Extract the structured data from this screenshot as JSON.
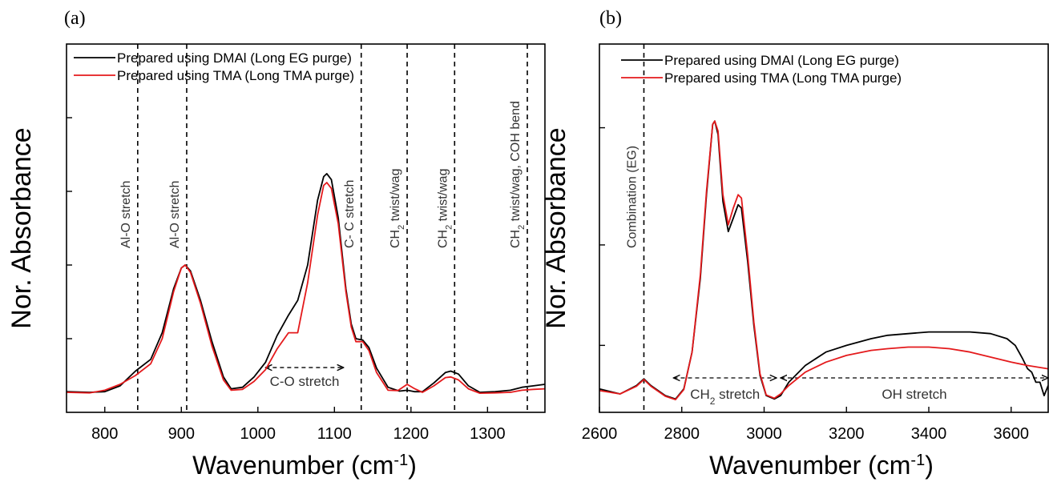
{
  "chart_data": [
    {
      "panel_label": "(a)",
      "type": "line",
      "xlabel": "Wavenumber (cm",
      "xlabel_sup": "-1",
      "xlabel_close": ")",
      "ylabel": "Nor. Absorbance",
      "xlim": [
        750,
        1375
      ],
      "ylim": [
        0,
        1.25
      ],
      "x_ticks": [
        800,
        900,
        1000,
        1100,
        1200,
        1300
      ],
      "x_tick_labels": [
        "800",
        "900",
        "1000",
        "1100",
        "1200",
        "1300"
      ],
      "y_ticks": [
        0.25,
        0.5,
        0.75,
        1.0
      ],
      "grid": false,
      "legend_position": "top-left",
      "series": [
        {
          "name": "Prepared using DMAl (Long EG purge)",
          "color": "#000000",
          "points": [
            [
              750,
              0.07
            ],
            [
              780,
              0.068
            ],
            [
              800,
              0.07
            ],
            [
              820,
              0.09
            ],
            [
              840,
              0.14
            ],
            [
              860,
              0.18
            ],
            [
              875,
              0.27
            ],
            [
              890,
              0.42
            ],
            [
              900,
              0.49
            ],
            [
              905,
              0.5
            ],
            [
              912,
              0.48
            ],
            [
              925,
              0.38
            ],
            [
              940,
              0.24
            ],
            [
              955,
              0.12
            ],
            [
              965,
              0.08
            ],
            [
              980,
              0.085
            ],
            [
              995,
              0.12
            ],
            [
              1010,
              0.17
            ],
            [
              1025,
              0.26
            ],
            [
              1040,
              0.33
            ],
            [
              1052,
              0.38
            ],
            [
              1065,
              0.5
            ],
            [
              1078,
              0.72
            ],
            [
              1086,
              0.8
            ],
            [
              1090,
              0.81
            ],
            [
              1096,
              0.79
            ],
            [
              1105,
              0.66
            ],
            [
              1115,
              0.42
            ],
            [
              1122,
              0.3
            ],
            [
              1128,
              0.25
            ],
            [
              1137,
              0.245
            ],
            [
              1145,
              0.22
            ],
            [
              1155,
              0.15
            ],
            [
              1170,
              0.085
            ],
            [
              1185,
              0.072
            ],
            [
              1195,
              0.075
            ],
            [
              1205,
              0.07
            ],
            [
              1215,
              0.07
            ],
            [
              1230,
              0.1
            ],
            [
              1245,
              0.135
            ],
            [
              1252,
              0.14
            ],
            [
              1262,
              0.13
            ],
            [
              1275,
              0.09
            ],
            [
              1290,
              0.068
            ],
            [
              1310,
              0.07
            ],
            [
              1330,
              0.075
            ],
            [
              1345,
              0.085
            ],
            [
              1360,
              0.09
            ],
            [
              1375,
              0.095
            ]
          ]
        },
        {
          "name": "Prepared using TMA (Long TMA purge)",
          "color": "#e41a1c",
          "points": [
            [
              750,
              0.068
            ],
            [
              780,
              0.066
            ],
            [
              800,
              0.075
            ],
            [
              820,
              0.095
            ],
            [
              840,
              0.125
            ],
            [
              860,
              0.165
            ],
            [
              875,
              0.25
            ],
            [
              890,
              0.41
            ],
            [
              900,
              0.49
            ],
            [
              905,
              0.5
            ],
            [
              912,
              0.475
            ],
            [
              925,
              0.37
            ],
            [
              940,
              0.225
            ],
            [
              955,
              0.11
            ],
            [
              965,
              0.075
            ],
            [
              980,
              0.078
            ],
            [
              995,
              0.105
            ],
            [
              1010,
              0.145
            ],
            [
              1025,
              0.215
            ],
            [
              1040,
              0.27
            ],
            [
              1052,
              0.27
            ],
            [
              1065,
              0.44
            ],
            [
              1078,
              0.67
            ],
            [
              1086,
              0.77
            ],
            [
              1090,
              0.78
            ],
            [
              1096,
              0.76
            ],
            [
              1105,
              0.64
            ],
            [
              1115,
              0.41
            ],
            [
              1122,
              0.29
            ],
            [
              1128,
              0.24
            ],
            [
              1137,
              0.24
            ],
            [
              1145,
              0.21
            ],
            [
              1155,
              0.135
            ],
            [
              1170,
              0.075
            ],
            [
              1183,
              0.074
            ],
            [
              1195,
              0.095
            ],
            [
              1205,
              0.08
            ],
            [
              1215,
              0.068
            ],
            [
              1230,
              0.09
            ],
            [
              1245,
              0.118
            ],
            [
              1252,
              0.12
            ],
            [
              1262,
              0.11
            ],
            [
              1275,
              0.08
            ],
            [
              1290,
              0.065
            ],
            [
              1310,
              0.066
            ],
            [
              1330,
              0.068
            ],
            [
              1345,
              0.075
            ],
            [
              1360,
              0.078
            ],
            [
              1375,
              0.08
            ]
          ]
        }
      ],
      "vlines": [
        {
          "x": 843,
          "label_main": "Al-O stretch",
          "label_sub": "",
          "label_rest": ""
        },
        {
          "x": 907,
          "label_main": "Al-O stretch",
          "label_sub": "",
          "label_rest": ""
        },
        {
          "x": 1135,
          "label_main": "C- C stretch",
          "label_sub": "",
          "label_rest": ""
        },
        {
          "x": 1195,
          "label_main": "CH",
          "label_sub": "2",
          "label_rest": " twist/wag"
        },
        {
          "x": 1257,
          "label_main": "CH",
          "label_sub": "2",
          "label_rest": " twist/wag"
        },
        {
          "x": 1352,
          "label_main": "CH",
          "label_sub": "2",
          "label_rest": " twist/wag, COH bend"
        }
      ],
      "span_annotations": [
        {
          "label": "C-O stretch",
          "x_from": 1010,
          "x_to": 1112,
          "arrow_y": 0.152,
          "text_y": 0.09,
          "sub": ""
        }
      ]
    },
    {
      "panel_label": "(b)",
      "type": "line",
      "xlabel": "Wavenumber (cm",
      "xlabel_sup": "-1",
      "xlabel_close": ")",
      "ylabel": "Nor. Absorbance",
      "xlim": [
        2600,
        3690
      ],
      "ylim": [
        0,
        1.1
      ],
      "x_ticks": [
        2600,
        2800,
        3000,
        3200,
        3400,
        3600
      ],
      "x_tick_labels": [
        "2600",
        "2800",
        "3000",
        "3200",
        "3400",
        "3600"
      ],
      "y_ticks": [
        0.2,
        0.5,
        0.85
      ],
      "grid": false,
      "legend_position": "top-left",
      "series": [
        {
          "name": "Prepared using DMAl (Long EG purge)",
          "color": "#000000",
          "points": [
            [
              2600,
              0.07
            ],
            [
              2650,
              0.055
            ],
            [
              2690,
              0.08
            ],
            [
              2708,
              0.1
            ],
            [
              2725,
              0.08
            ],
            [
              2760,
              0.05
            ],
            [
              2785,
              0.04
            ],
            [
              2805,
              0.07
            ],
            [
              2825,
              0.18
            ],
            [
              2845,
              0.4
            ],
            [
              2860,
              0.65
            ],
            [
              2875,
              0.86
            ],
            [
              2880,
              0.87
            ],
            [
              2888,
              0.83
            ],
            [
              2900,
              0.63
            ],
            [
              2913,
              0.54
            ],
            [
              2925,
              0.58
            ],
            [
              2937,
              0.62
            ],
            [
              2945,
              0.61
            ],
            [
              2960,
              0.45
            ],
            [
              2975,
              0.26
            ],
            [
              2990,
              0.11
            ],
            [
              3005,
              0.05
            ],
            [
              3025,
              0.04
            ],
            [
              3040,
              0.05
            ],
            [
              3060,
              0.09
            ],
            [
              3100,
              0.14
            ],
            [
              3150,
              0.18
            ],
            [
              3200,
              0.2
            ],
            [
              3260,
              0.22
            ],
            [
              3300,
              0.23
            ],
            [
              3350,
              0.235
            ],
            [
              3400,
              0.24
            ],
            [
              3450,
              0.24
            ],
            [
              3500,
              0.24
            ],
            [
              3550,
              0.235
            ],
            [
              3590,
              0.22
            ],
            [
              3610,
              0.2
            ],
            [
              3628,
              0.16
            ],
            [
              3640,
              0.13
            ],
            [
              3650,
              0.12
            ],
            [
              3660,
              0.09
            ],
            [
              3670,
              0.09
            ],
            [
              3680,
              0.05
            ],
            [
              3690,
              0.08
            ]
          ]
        },
        {
          "name": "Prepared using TMA (Long TMA purge)",
          "color": "#e41a1c",
          "points": [
            [
              2600,
              0.065
            ],
            [
              2650,
              0.055
            ],
            [
              2690,
              0.078
            ],
            [
              2708,
              0.098
            ],
            [
              2725,
              0.078
            ],
            [
              2760,
              0.048
            ],
            [
              2785,
              0.038
            ],
            [
              2805,
              0.068
            ],
            [
              2825,
              0.18
            ],
            [
              2845,
              0.41
            ],
            [
              2860,
              0.66
            ],
            [
              2875,
              0.86
            ],
            [
              2880,
              0.87
            ],
            [
              2888,
              0.84
            ],
            [
              2900,
              0.65
            ],
            [
              2913,
              0.56
            ],
            [
              2925,
              0.61
            ],
            [
              2937,
              0.65
            ],
            [
              2945,
              0.64
            ],
            [
              2960,
              0.47
            ],
            [
              2975,
              0.27
            ],
            [
              2990,
              0.115
            ],
            [
              3005,
              0.052
            ],
            [
              3025,
              0.042
            ],
            [
              3040,
              0.055
            ],
            [
              3060,
              0.08
            ],
            [
              3100,
              0.12
            ],
            [
              3150,
              0.15
            ],
            [
              3200,
              0.17
            ],
            [
              3260,
              0.185
            ],
            [
              3300,
              0.19
            ],
            [
              3350,
              0.195
            ],
            [
              3400,
              0.195
            ],
            [
              3450,
              0.19
            ],
            [
              3500,
              0.18
            ],
            [
              3550,
              0.165
            ],
            [
              3600,
              0.15
            ],
            [
              3640,
              0.14
            ],
            [
              3690,
              0.13
            ]
          ]
        }
      ],
      "vlines": [
        {
          "x": 2708,
          "label_main": "Combination (EG)",
          "label_sub": "",
          "label_rest": ""
        }
      ],
      "span_annotations": [
        {
          "label": "CH",
          "sub": "2",
          "label_rest": " stretch",
          "x_from": 2780,
          "x_to": 3030,
          "arrow_y": 0.0,
          "text_y": -0.06
        },
        {
          "label": "OH stretch",
          "sub": "",
          "label_rest": "",
          "x_from": 3040,
          "x_to": 3690,
          "arrow_y": 0.0,
          "text_y": -0.06
        }
      ]
    }
  ]
}
